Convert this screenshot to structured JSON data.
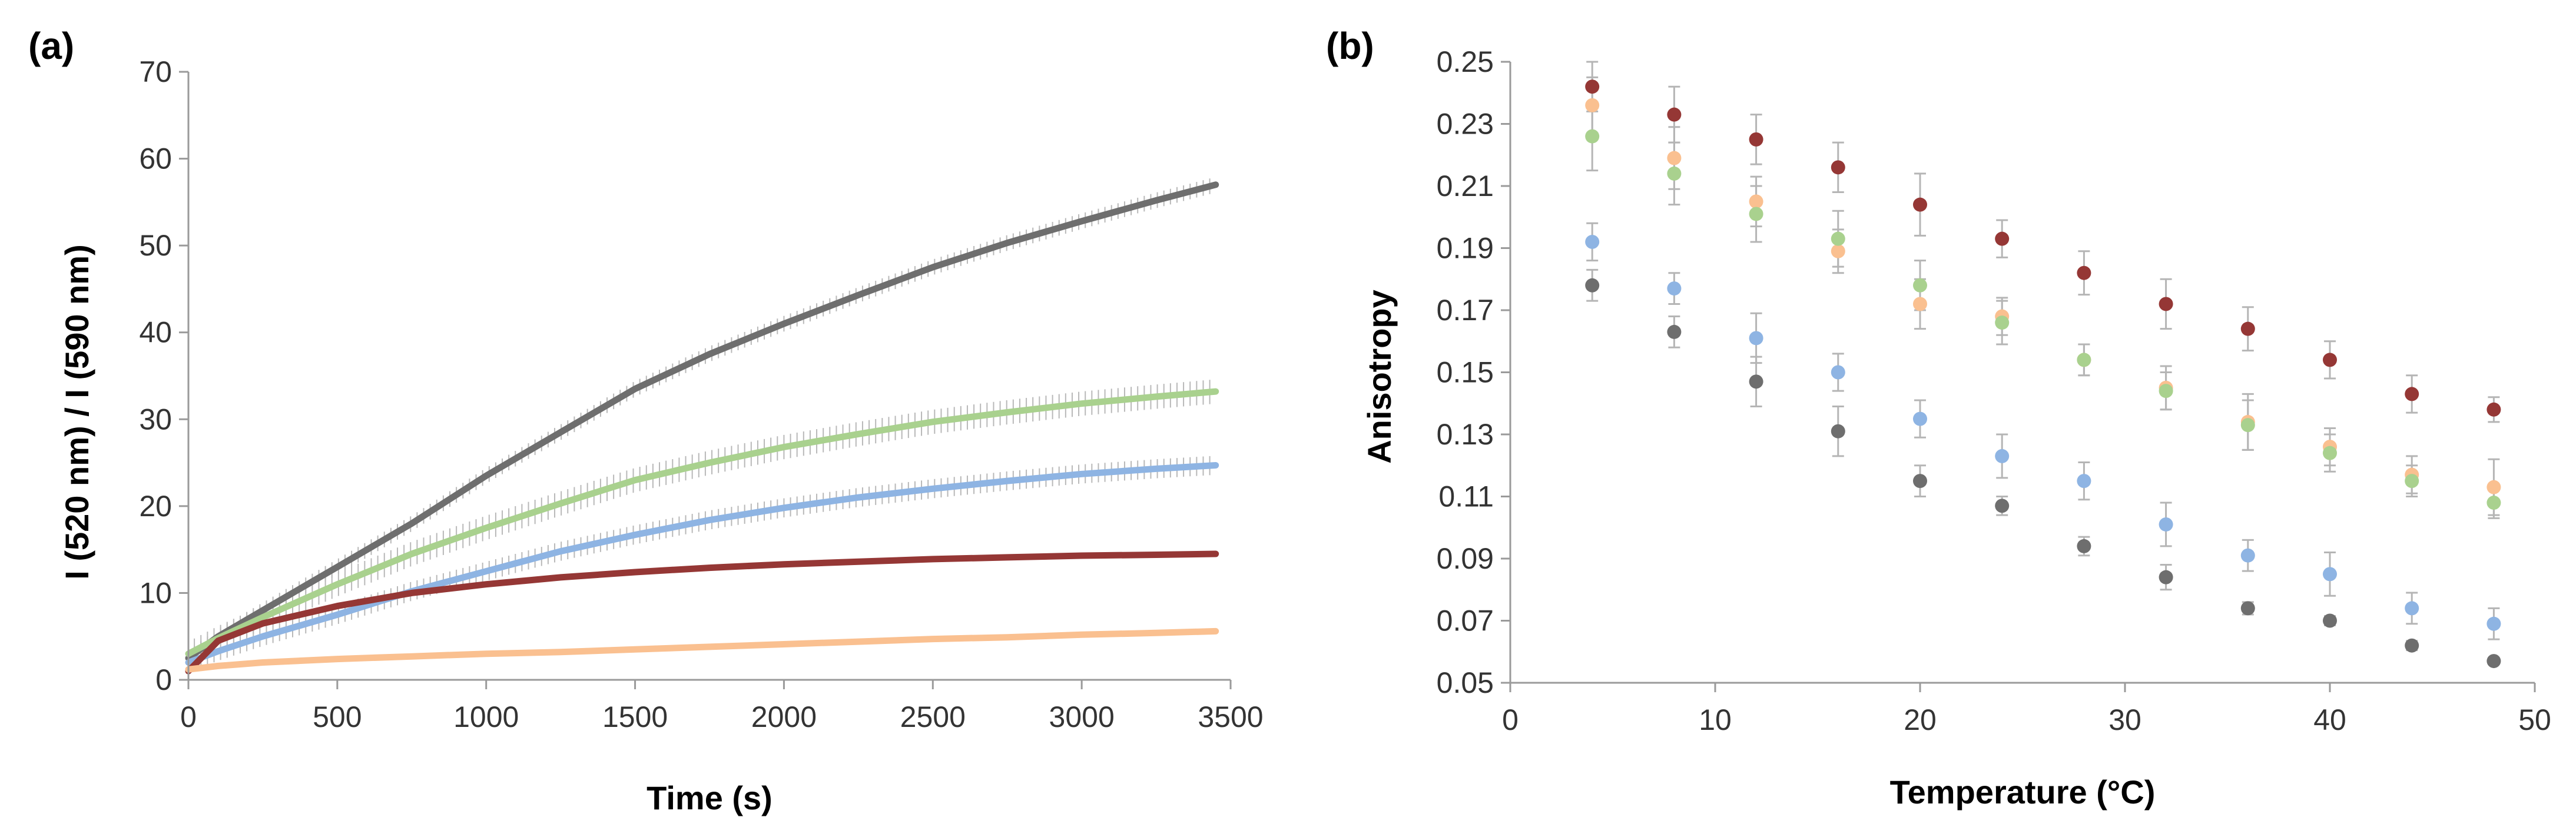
{
  "chart_data": [
    {
      "panel": "(a)",
      "type": "line",
      "title": "",
      "xlabel": "Time (s)",
      "ylabel": "I (520 nm) / I (590 nm)",
      "xlim": [
        0,
        3500
      ],
      "ylim": [
        0,
        70
      ],
      "xticks": [
        0,
        500,
        1000,
        1500,
        2000,
        2500,
        3000,
        3500
      ],
      "yticks": [
        0,
        10,
        20,
        30,
        40,
        50,
        60,
        70
      ],
      "grid": false,
      "legend": "none",
      "error_bars": true,
      "series": [
        {
          "name": "gray",
          "color": "#6e6e6e",
          "x": [
            0,
            100,
            250,
            500,
            750,
            1000,
            1250,
            1500,
            1750,
            2000,
            2250,
            2500,
            2750,
            3000,
            3250,
            3450
          ],
          "values": [
            2.5,
            5.0,
            8.0,
            13.0,
            18.0,
            23.5,
            28.5,
            33.5,
            37.5,
            41.0,
            44.3,
            47.5,
            50.3,
            52.8,
            55.2,
            57.0
          ],
          "error": 0.9
        },
        {
          "name": "green",
          "color": "#a9d18e",
          "x": [
            0,
            100,
            250,
            500,
            750,
            1000,
            1250,
            1500,
            1750,
            2000,
            2250,
            2500,
            2750,
            3000,
            3250,
            3450
          ],
          "values": [
            3.0,
            4.8,
            7.2,
            11.0,
            14.5,
            17.5,
            20.3,
            23.0,
            25.0,
            26.8,
            28.3,
            29.7,
            30.8,
            31.8,
            32.6,
            33.2
          ],
          "error": 1.4
        },
        {
          "name": "blue",
          "color": "#8eb4e3",
          "x": [
            0,
            100,
            250,
            500,
            750,
            1000,
            1250,
            1500,
            1750,
            2000,
            2250,
            2500,
            2750,
            3000,
            3250,
            3450
          ],
          "values": [
            2.0,
            3.3,
            5.0,
            7.5,
            10.2,
            12.5,
            14.8,
            16.7,
            18.4,
            19.8,
            21.0,
            22.0,
            22.9,
            23.7,
            24.3,
            24.7
          ],
          "error": 1.1
        },
        {
          "name": "dark red",
          "color": "#953735",
          "x": [
            0,
            100,
            250,
            500,
            750,
            1000,
            1250,
            1500,
            1750,
            2000,
            2250,
            2500,
            2750,
            3000,
            3250,
            3450
          ],
          "values": [
            1.0,
            4.5,
            6.5,
            8.5,
            10.0,
            11.0,
            11.8,
            12.4,
            12.9,
            13.3,
            13.6,
            13.9,
            14.1,
            14.3,
            14.4,
            14.5
          ],
          "error": 0.3
        },
        {
          "name": "orange",
          "color": "#fac090",
          "x": [
            0,
            100,
            250,
            500,
            750,
            1000,
            1250,
            1500,
            1750,
            2000,
            2250,
            2500,
            2750,
            3000,
            3250,
            3450
          ],
          "values": [
            1.2,
            1.6,
            2.0,
            2.4,
            2.7,
            3.0,
            3.2,
            3.5,
            3.8,
            4.1,
            4.4,
            4.7,
            4.9,
            5.2,
            5.4,
            5.6
          ],
          "error": 0.2
        }
      ]
    },
    {
      "panel": "(b)",
      "type": "scatter",
      "title": "",
      "xlabel": "Temperature (°C)",
      "ylabel": "Anisotropy",
      "xlim": [
        0,
        50
      ],
      "ylim": [
        0.05,
        0.25
      ],
      "xticks": [
        0,
        10,
        20,
        30,
        40,
        50
      ],
      "yticks": [
        "0.05",
        "0.07",
        "0.09",
        "0.11",
        "0.13",
        "0.15",
        "0.17",
        "0.19",
        "0.21",
        "0.23",
        "0.25"
      ],
      "grid": false,
      "legend": "none",
      "error_bars": true,
      "series": [
        {
          "name": "dark red",
          "color": "#953735",
          "x": [
            4,
            8,
            12,
            16,
            20,
            24,
            28,
            32,
            36,
            40,
            44,
            48
          ],
          "values": [
            0.242,
            0.233,
            0.225,
            0.216,
            0.204,
            0.193,
            0.182,
            0.172,
            0.164,
            0.154,
            0.143,
            0.138
          ],
          "errors": [
            0.008,
            0.009,
            0.008,
            0.008,
            0.01,
            0.006,
            0.007,
            0.008,
            0.007,
            0.006,
            0.006,
            0.004
          ]
        },
        {
          "name": "orange",
          "color": "#fac090",
          "x": [
            4,
            8,
            12,
            16,
            20,
            24,
            28,
            32,
            36,
            40,
            44,
            48
          ],
          "values": [
            0.236,
            0.219,
            0.205,
            0.189,
            0.172,
            0.168,
            0.154,
            0.145,
            0.134,
            0.126,
            0.117,
            0.113
          ],
          "errors": [
            0.009,
            0.01,
            0.008,
            0.007,
            0.008,
            0.006,
            0.005,
            0.007,
            0.009,
            0.006,
            0.006,
            0.009
          ]
        },
        {
          "name": "green",
          "color": "#a9d18e",
          "x": [
            4,
            8,
            12,
            16,
            20,
            24,
            28,
            32,
            36,
            40,
            44,
            48
          ],
          "values": [
            0.226,
            0.214,
            0.201,
            0.193,
            0.178,
            0.166,
            0.154,
            0.144,
            0.133,
            0.124,
            0.115,
            0.108
          ],
          "errors": [
            0.011,
            0.01,
            0.009,
            0.009,
            0.008,
            0.007,
            0.005,
            0.006,
            0.008,
            0.006,
            0.005,
            0.005
          ]
        },
        {
          "name": "blue",
          "color": "#8eb4e3",
          "x": [
            4,
            8,
            12,
            16,
            20,
            24,
            28,
            32,
            36,
            40,
            44,
            48
          ],
          "values": [
            0.192,
            0.177,
            0.161,
            0.15,
            0.135,
            0.123,
            0.115,
            0.101,
            0.091,
            0.085,
            0.074,
            0.069
          ],
          "errors": [
            0.006,
            0.005,
            0.008,
            0.006,
            0.006,
            0.007,
            0.006,
            0.007,
            0.005,
            0.007,
            0.005,
            0.005
          ]
        },
        {
          "name": "gray",
          "color": "#6e6e6e",
          "x": [
            4,
            8,
            12,
            16,
            20,
            24,
            28,
            32,
            36,
            40,
            44,
            48
          ],
          "values": [
            0.178,
            0.163,
            0.147,
            0.131,
            0.115,
            0.107,
            0.094,
            0.084,
            0.074,
            0.07,
            0.062,
            0.057
          ],
          "errors": [
            0.005,
            0.005,
            0.008,
            0.008,
            0.005,
            0.003,
            0.003,
            0.004,
            0.002,
            0.0015,
            0.0015,
            0.001
          ]
        }
      ]
    }
  ]
}
